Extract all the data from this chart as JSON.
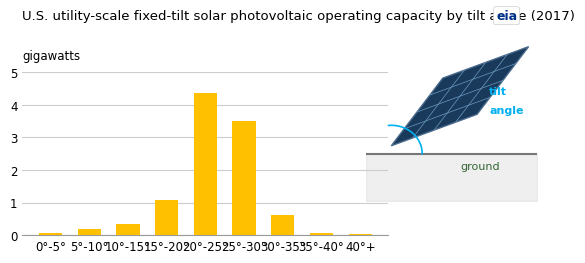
{
  "title": "U.S. utility-scale fixed-tilt solar photovoltaic operating capacity by tilt angle (2017)",
  "ylabel": "gigawatts",
  "categories": [
    "0°-5°",
    "5°-10°",
    "10°-15°",
    "15°-20°",
    "20°-25°",
    "25°-30°",
    "30°-35°",
    "35°-40°",
    "40°+"
  ],
  "values": [
    0.08,
    0.18,
    0.33,
    1.08,
    4.35,
    3.5,
    0.63,
    0.08,
    0.05
  ],
  "bar_color": "#FFC000",
  "ylim": [
    0,
    5
  ],
  "yticks": [
    0,
    1,
    2,
    3,
    4,
    5
  ],
  "background_color": "#ffffff",
  "title_fontsize": 9.5,
  "ylabel_fontsize": 8.5,
  "tick_fontsize": 8.5,
  "grid_color": "#cccccc"
}
